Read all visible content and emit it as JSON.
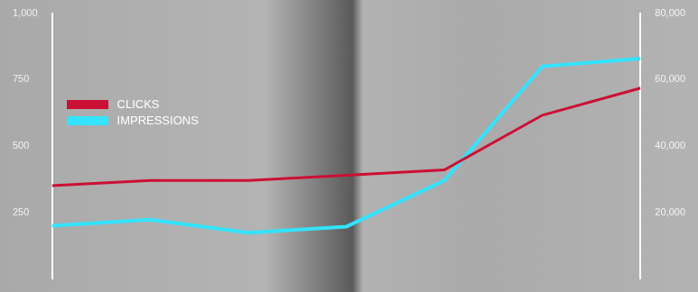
{
  "chart_data": {
    "type": "line",
    "categories": [
      null,
      null,
      null,
      null,
      null,
      null,
      null
    ],
    "series": [
      {
        "name": "CLICKS",
        "color": "#cc0f34",
        "values": [
          351,
          370,
          370,
          390,
          410,
          616,
          718
        ]
      },
      {
        "name": "IMPRESSIONS",
        "color": "#33e3ff",
        "axis": "y2",
        "values": [
          16000,
          17800,
          13900,
          15700,
          29600,
          64000,
          66300
        ]
      }
    ],
    "ylim": [
      0,
      1000
    ],
    "yticks": [
      250,
      500,
      750,
      {
        "value": 1000,
        "label": "1,000"
      }
    ],
    "y2lim": [
      0,
      80000
    ],
    "y2ticks": [
      {
        "value": 20000,
        "label": "20,000"
      },
      {
        "value": 40000,
        "label": "40,000"
      },
      {
        "value": 60000,
        "label": "60,000"
      },
      {
        "value": 80000,
        "label": "80,000"
      }
    ],
    "grid": false,
    "legend": "top-left"
  }
}
